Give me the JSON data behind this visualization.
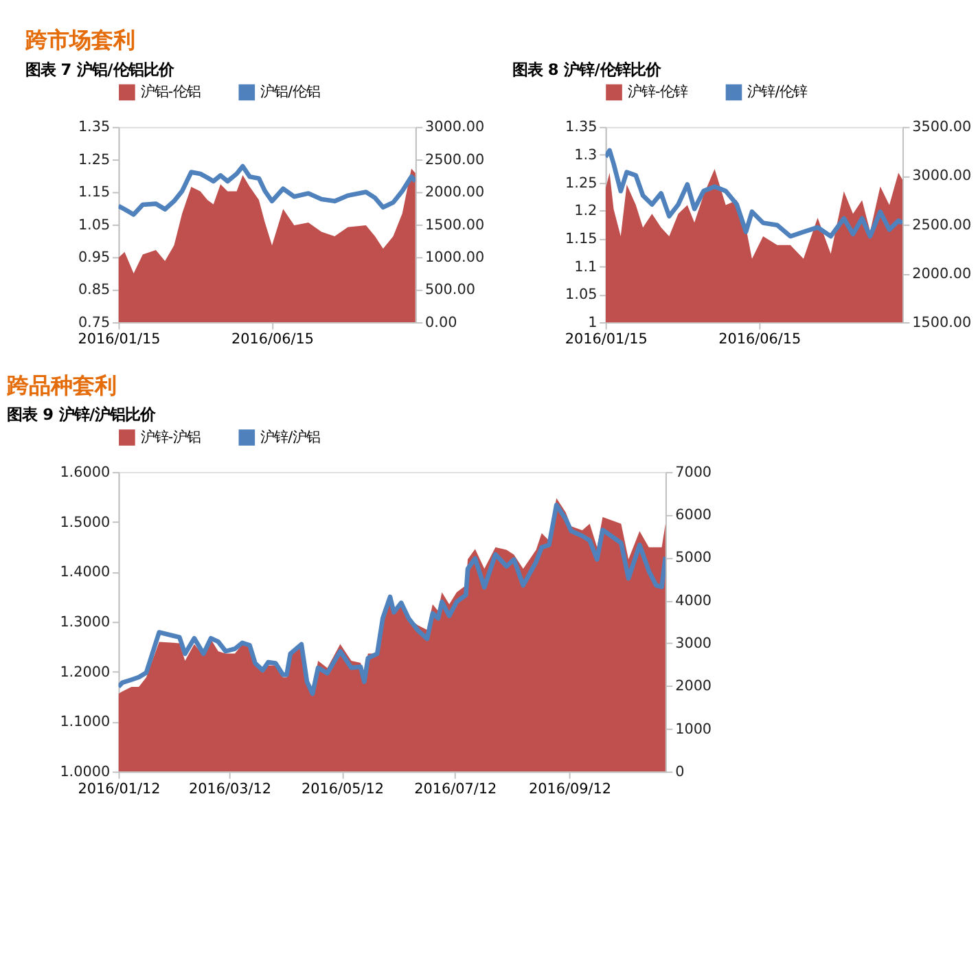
{
  "chart_data": [
    {
      "type": "line",
      "title": "图表 7 沪铝/伦铝比价",
      "annotations": [
        "跨市场套利"
      ],
      "legend": "top",
      "x": [
        "2016-01-15",
        "2016-01-21",
        "2016-01-30",
        "2016-02-08",
        "2016-02-21",
        "2016-03-01",
        "2016-03-10",
        "2016-03-18",
        "2016-03-27",
        "2016-04-05",
        "2016-04-12",
        "2016-04-18",
        "2016-04-25",
        "2016-05-02",
        "2016-05-11",
        "2016-05-17",
        "2016-05-24",
        "2016-06-02",
        "2016-06-08",
        "2016-06-15",
        "2016-06-26",
        "2016-07-07",
        "2016-07-21",
        "2016-08-03",
        "2016-08-16",
        "2016-08-29",
        "2016-09-16",
        "2016-09-25",
        "2016-10-03",
        "2016-10-13",
        "2016-10-22",
        "2016-10-31",
        "2016-11-04"
      ],
      "xlim": [
        "2016-01-15",
        "2016-11-04"
      ],
      "xticks": [
        {
          "value": "2016-01-15",
          "label": "2016/01/15"
        },
        {
          "value": "2016-06-15",
          "label": "2016/06/15"
        }
      ],
      "ylim": [
        0.75,
        1.35
      ],
      "yticks": [
        0.75,
        0.85,
        0.95,
        1.05,
        1.15,
        1.25,
        1.35
      ],
      "y2lim": [
        0,
        3000
      ],
      "y2ticks": [
        {
          "value": 0,
          "label": "0.00"
        },
        {
          "value": 500,
          "label": "500.00"
        },
        {
          "value": 1000,
          "label": "1000.00"
        },
        {
          "value": 1500,
          "label": "1500.00"
        },
        {
          "value": 2000,
          "label": "2000.00"
        },
        {
          "value": 2500,
          "label": "2500.00"
        },
        {
          "value": 3000,
          "label": "3000.00"
        }
      ],
      "series": [
        {
          "name": "沪铝-伦铝",
          "type": "area",
          "axis": "y2",
          "color": "#c0504d",
          "values": [
            990,
            1080,
            750,
            1040,
            1110,
            940,
            1180,
            1670,
            2080,
            2010,
            1880,
            1810,
            2120,
            2010,
            2010,
            2260,
            2080,
            1880,
            1530,
            1180,
            1740,
            1490,
            1530,
            1390,
            1320,
            1460,
            1490,
            1320,
            1130,
            1320,
            1670,
            2360,
            2290
          ]
        },
        {
          "name": "沪铝/伦铝",
          "color": "#4f81bd",
          "values": [
            1.107,
            1.097,
            1.081,
            1.111,
            1.114,
            1.097,
            1.122,
            1.153,
            1.211,
            1.206,
            1.194,
            1.183,
            1.201,
            1.183,
            1.206,
            1.229,
            1.197,
            1.192,
            1.153,
            1.122,
            1.16,
            1.136,
            1.146,
            1.128,
            1.122,
            1.139,
            1.15,
            1.132,
            1.103,
            1.118,
            1.153,
            1.197,
            1.183
          ]
        }
      ]
    },
    {
      "type": "line",
      "title": "图表 8 沪锌/伦锌比价",
      "legend": "top",
      "x": [
        "2016-01-15",
        "2016-01-19",
        "2016-01-23",
        "2016-01-30",
        "2016-02-05",
        "2016-02-14",
        "2016-02-21",
        "2016-03-01",
        "2016-03-10",
        "2016-03-18",
        "2016-03-27",
        "2016-04-05",
        "2016-04-12",
        "2016-04-21",
        "2016-05-02",
        "2016-05-13",
        "2016-05-24",
        "2016-06-02",
        "2016-06-08",
        "2016-06-19",
        "2016-07-03",
        "2016-07-16",
        "2016-07-29",
        "2016-08-12",
        "2016-08-25",
        "2016-09-07",
        "2016-09-16",
        "2016-09-25",
        "2016-10-03",
        "2016-10-13",
        "2016-10-22",
        "2016-10-31",
        "2016-11-04"
      ],
      "xlim": [
        "2016-01-15",
        "2016-11-04"
      ],
      "xticks": [
        {
          "value": "2016-01-15",
          "label": "2016/01/15"
        },
        {
          "value": "2016-06-15",
          "label": "2016/06/15"
        }
      ],
      "ylim": [
        1,
        1.35
      ],
      "yticks": [
        1,
        1.05,
        1.1,
        1.15,
        1.2,
        1.25,
        1.3,
        1.35
      ],
      "y2lim": [
        1500,
        3500
      ],
      "y2ticks": [
        {
          "value": 1500,
          "label": "1500.00"
        },
        {
          "value": 2000,
          "label": "2000.00"
        },
        {
          "value": 2500,
          "label": "2500.00"
        },
        {
          "value": 3000,
          "label": "3000.00"
        },
        {
          "value": 3500,
          "label": "3500.00"
        }
      ],
      "series": [
        {
          "name": "沪锌-伦锌",
          "type": "area",
          "axis": "y2",
          "color": "#c0504d",
          "values": [
            2870,
            3030,
            2660,
            2380,
            2910,
            2700,
            2470,
            2610,
            2470,
            2380,
            2610,
            2700,
            2520,
            2800,
            3070,
            2700,
            2750,
            2470,
            2150,
            2380,
            2290,
            2290,
            2150,
            2570,
            2200,
            2840,
            2610,
            2750,
            2430,
            2890,
            2700,
            3030,
            2960
          ]
        },
        {
          "name": "沪锌/伦锌",
          "color": "#4f81bd",
          "values": [
            1.296,
            1.308,
            1.284,
            1.235,
            1.269,
            1.263,
            1.227,
            1.211,
            1.231,
            1.19,
            1.211,
            1.247,
            1.203,
            1.235,
            1.243,
            1.235,
            1.211,
            1.162,
            1.198,
            1.178,
            1.174,
            1.154,
            1.162,
            1.17,
            1.154,
            1.186,
            1.158,
            1.186,
            1.154,
            1.198,
            1.166,
            1.182,
            1.178
          ]
        }
      ]
    },
    {
      "type": "line",
      "title": "图表 9 沪锌/沪铝比价",
      "annotations": [
        "跨品种套利"
      ],
      "legend": "top",
      "x": [
        "2016-01-12",
        "2016-01-14",
        "2016-01-19",
        "2016-01-23",
        "2016-01-27",
        "2016-02-03",
        "2016-02-14",
        "2016-02-17",
        "2016-02-22",
        "2016-02-27",
        "2016-03-02",
        "2016-03-06",
        "2016-03-10",
        "2016-03-15",
        "2016-03-19",
        "2016-03-23",
        "2016-03-26",
        "2016-03-30",
        "2016-04-02",
        "2016-04-06",
        "2016-04-10",
        "2016-04-12",
        "2016-04-14",
        "2016-04-20",
        "2016-04-23",
        "2016-04-26",
        "2016-04-29",
        "2016-05-04",
        "2016-05-11",
        "2016-05-17",
        "2016-05-22",
        "2016-05-24",
        "2016-05-26",
        "2016-05-31",
        "2016-06-03",
        "2016-06-07",
        "2016-06-09",
        "2016-06-13",
        "2016-06-17",
        "2016-06-22",
        "2016-06-27",
        "2016-06-30",
        "2016-07-03",
        "2016-07-05",
        "2016-07-09",
        "2016-07-13",
        "2016-07-18",
        "2016-07-19",
        "2016-07-23",
        "2016-07-28",
        "2016-08-03",
        "2016-08-09",
        "2016-08-13",
        "2016-08-18",
        "2016-08-25",
        "2016-08-28",
        "2016-09-01",
        "2016-09-05",
        "2016-09-10",
        "2016-09-13",
        "2016-09-19",
        "2016-09-23",
        "2016-09-27",
        "2016-09-30",
        "2016-10-10",
        "2016-10-14",
        "2016-10-20",
        "2016-10-25",
        "2016-10-29",
        "2016-11-01",
        "2016-11-03"
      ],
      "xlim": [
        "2016-01-12",
        "2016-11-03"
      ],
      "xticks": [
        {
          "value": "2016-01-12",
          "label": "2016/01/12"
        },
        {
          "value": "2016-03-12",
          "label": "2016/03/12"
        },
        {
          "value": "2016-05-12",
          "label": "2016/05/12"
        },
        {
          "value": "2016-07-12",
          "label": "2016/07/12"
        },
        {
          "value": "2016-09-12",
          "label": "2016/09/12"
        }
      ],
      "ylim": [
        1.0,
        1.6
      ],
      "yticks": [
        {
          "value": 1.0,
          "label": "1.0000"
        },
        {
          "value": 1.1,
          "label": "1.1000"
        },
        {
          "value": 1.2,
          "label": "1.2000"
        },
        {
          "value": 1.3,
          "label": "1.3000"
        },
        {
          "value": 1.4,
          "label": "1.4000"
        },
        {
          "value": 1.5,
          "label": "1.5000"
        },
        {
          "value": 1.6,
          "label": "1.6000"
        }
      ],
      "y2lim": [
        0,
        7000
      ],
      "y2ticks": [
        0,
        1000,
        2000,
        3000,
        4000,
        5000,
        6000,
        7000
      ],
      "series": [
        {
          "name": "沪锌-沪铝",
          "type": "area",
          "axis": "y2",
          "color": "#c0504d",
          "values": [
            1820,
            1870,
            1980,
            1980,
            2200,
            3030,
            3000,
            2590,
            2980,
            2700,
            3090,
            2810,
            2760,
            2760,
            2980,
            2920,
            2540,
            2310,
            2480,
            2480,
            2200,
            2200,
            2810,
            3030,
            2200,
            1870,
            2590,
            2420,
            2980,
            2590,
            2540,
            2200,
            2760,
            2760,
            3640,
            4020,
            3800,
            3910,
            3580,
            3420,
            3310,
            3910,
            3750,
            4190,
            3910,
            4190,
            4350,
            4960,
            5200,
            4740,
            5240,
            5180,
            5070,
            4740,
            5180,
            5570,
            5400,
            6390,
            6060,
            5730,
            5640,
            5790,
            5240,
            5950,
            5790,
            4960,
            5620,
            5240,
            5240,
            5240,
            5790
          ]
        },
        {
          "name": "沪锌/沪铝",
          "color": "#4f81bd",
          "values": [
            1.17,
            1.178,
            1.184,
            1.189,
            1.198,
            1.279,
            1.269,
            1.236,
            1.267,
            1.236,
            1.267,
            1.26,
            1.241,
            1.246,
            1.258,
            1.253,
            1.217,
            1.203,
            1.219,
            1.217,
            1.194,
            1.194,
            1.236,
            1.255,
            1.18,
            1.156,
            1.208,
            1.197,
            1.241,
            1.208,
            1.21,
            1.18,
            1.227,
            1.236,
            1.307,
            1.35,
            1.319,
            1.338,
            1.307,
            1.283,
            1.266,
            1.317,
            1.307,
            1.34,
            1.312,
            1.34,
            1.354,
            1.406,
            1.427,
            1.369,
            1.435,
            1.411,
            1.425,
            1.373,
            1.42,
            1.449,
            1.454,
            1.534,
            1.506,
            1.482,
            1.472,
            1.463,
            1.425,
            1.484,
            1.458,
            1.387,
            1.454,
            1.402,
            1.373,
            1.37,
            1.43
          ]
        }
      ]
    }
  ]
}
